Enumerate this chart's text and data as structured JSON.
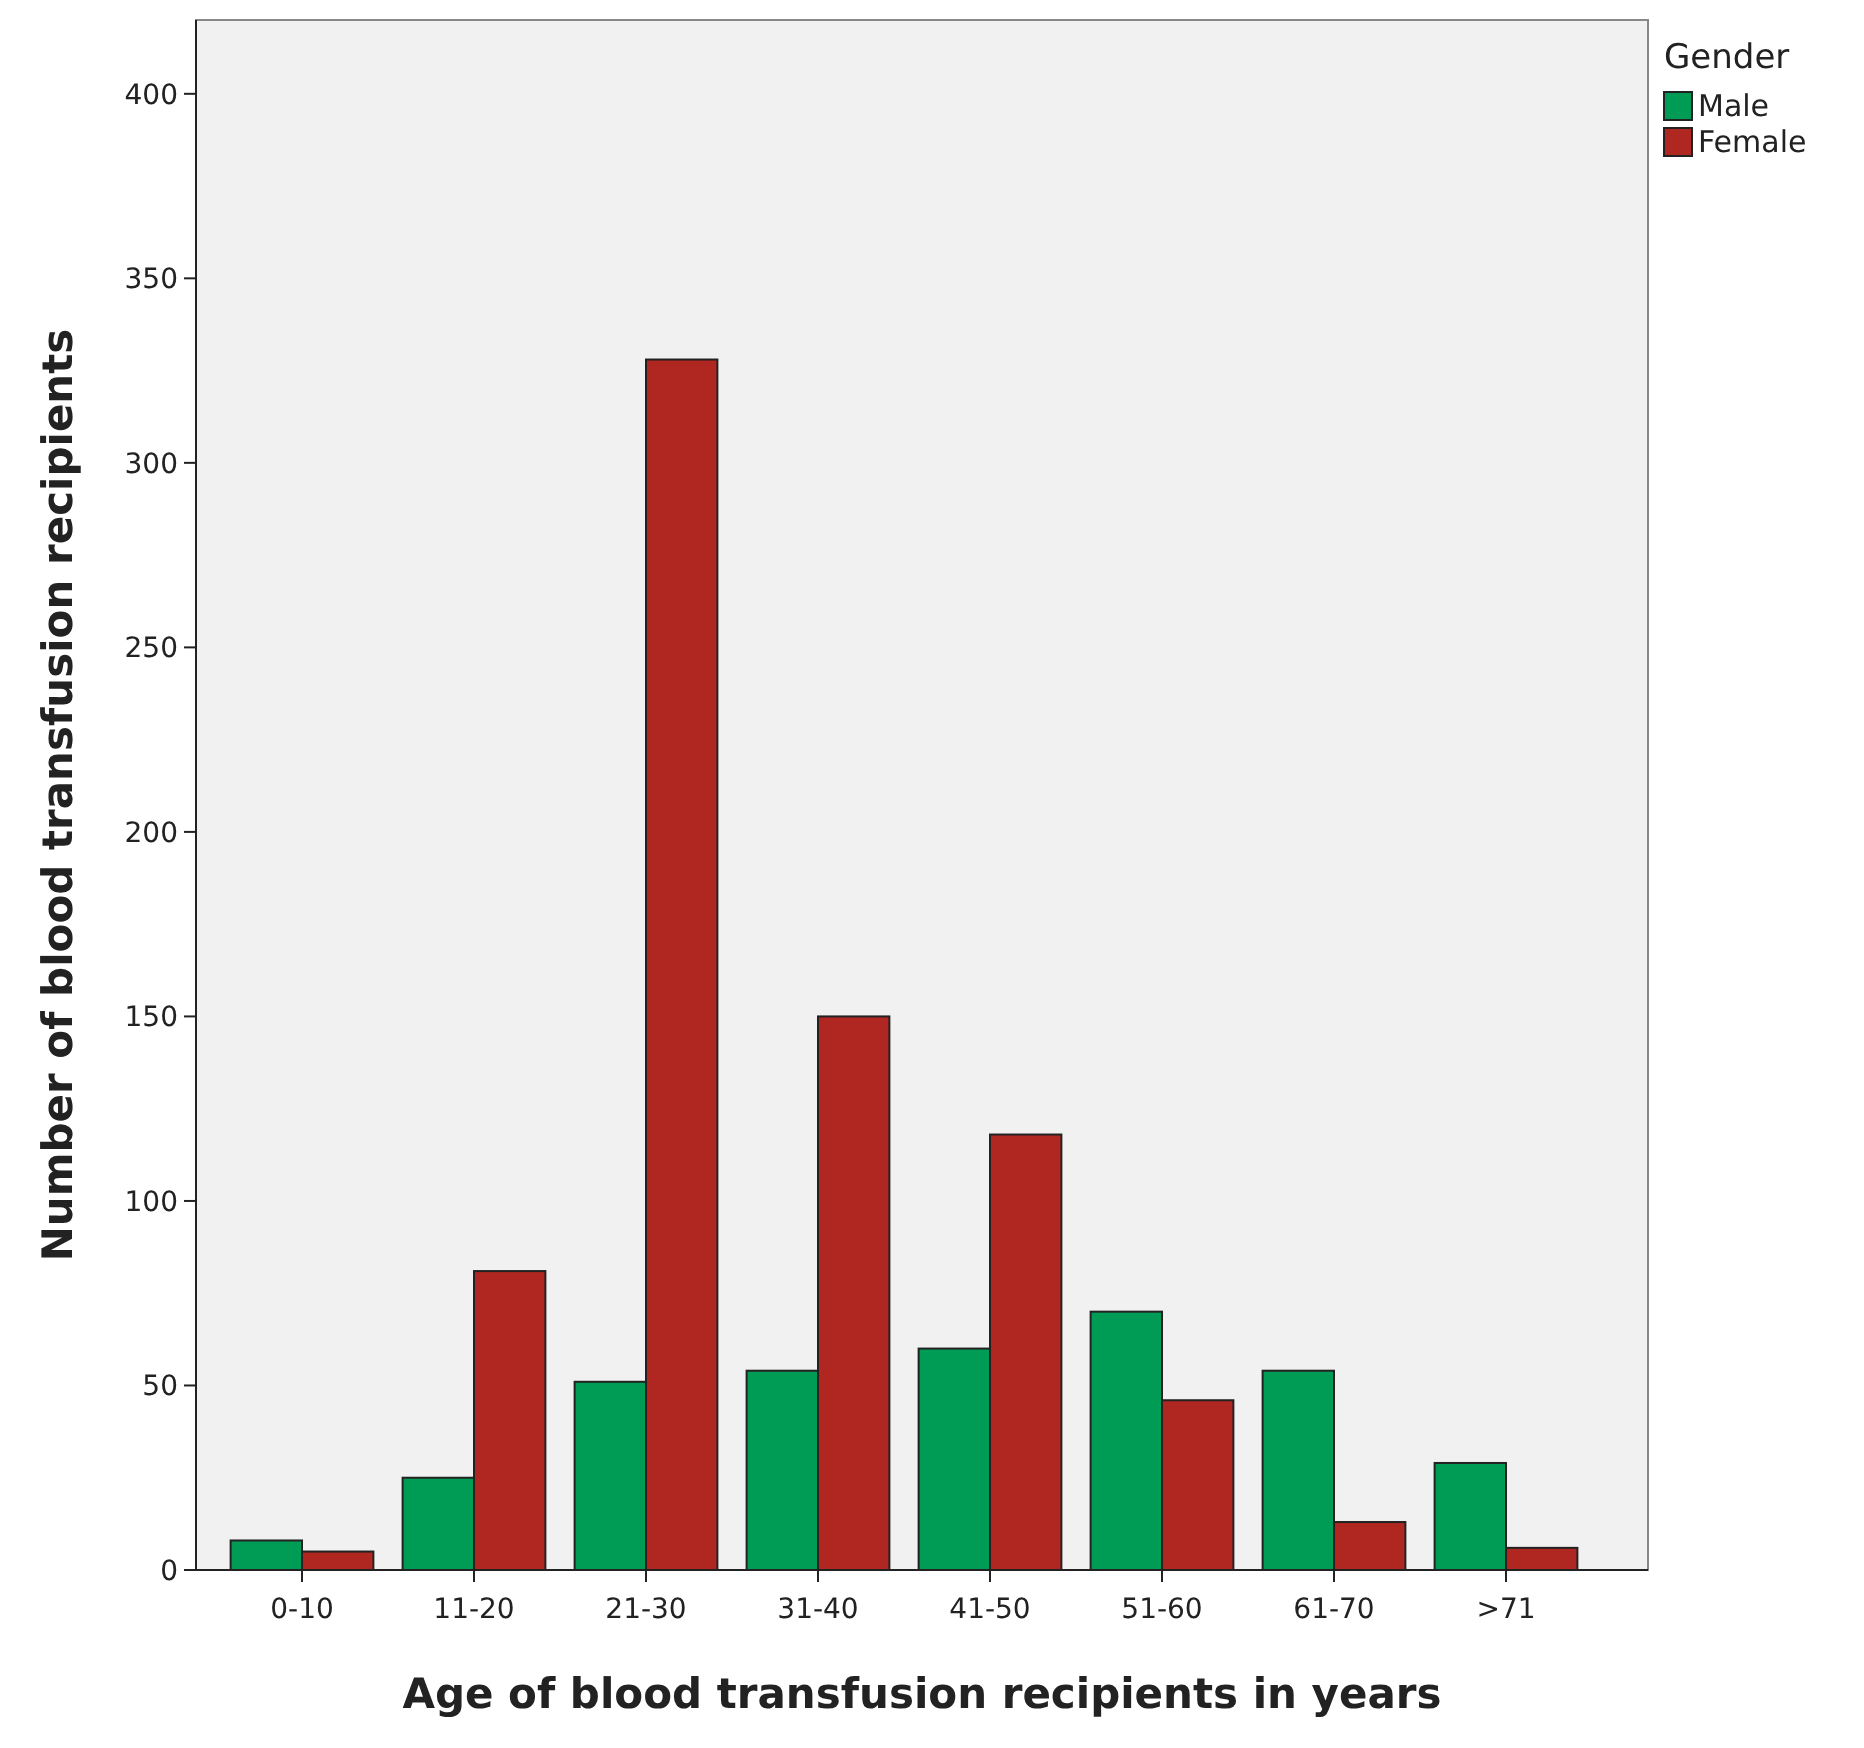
{
  "chart_data": {
    "type": "bar",
    "xlabel": "Age of blood transfusion recipients in years",
    "ylabel": "Number of blood transfusion recipients",
    "legend_title": "Gender",
    "categories": [
      "0-10",
      "11-20",
      "21-30",
      "31-40",
      "41-50",
      "51-60",
      "61-70",
      ">71"
    ],
    "series": [
      {
        "name": "Male",
        "color": "#009b55",
        "values": [
          8,
          25,
          51,
          54,
          60,
          70,
          54,
          29
        ]
      },
      {
        "name": "Female",
        "color": "#b02620",
        "values": [
          5,
          81,
          328,
          150,
          118,
          46,
          13,
          6
        ]
      }
    ],
    "ylim": [
      0,
      420
    ],
    "yticks": [
      0,
      50,
      100,
      150,
      200,
      250,
      300,
      350,
      400
    ],
    "grid": false,
    "legend": "top right"
  }
}
